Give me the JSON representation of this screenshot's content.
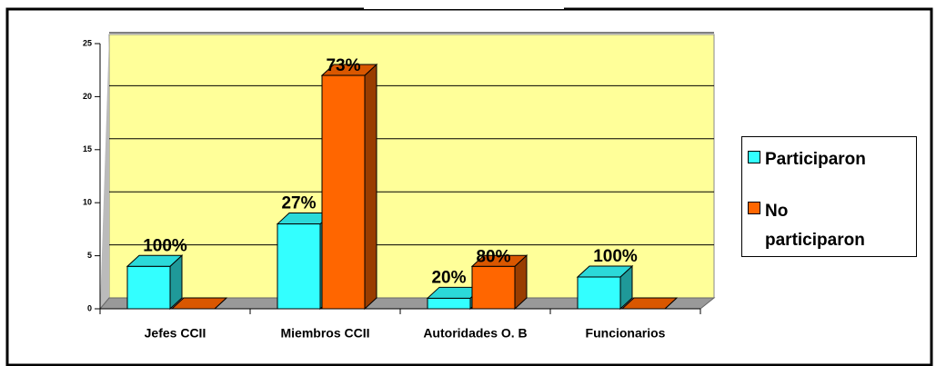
{
  "chart_data": {
    "type": "bar3d",
    "categories": [
      "Jefes CCII",
      "Miembros CCII",
      "Autoridades O. B",
      "Funcionarios"
    ],
    "series": [
      {
        "name": "Participaron",
        "color": "#33ffff",
        "values": [
          4,
          8,
          1,
          3
        ],
        "labels": [
          "100%",
          "27%",
          "20%",
          "100%"
        ]
      },
      {
        "name": "No participaron",
        "color": "#ff6600",
        "values": [
          0,
          22,
          4,
          0
        ],
        "labels": [
          null,
          "73%",
          "80%",
          null
        ]
      }
    ],
    "ylim": [
      0,
      25
    ],
    "yticks": [
      0,
      5,
      10,
      15,
      20,
      25
    ],
    "grid": true,
    "legend": "right"
  }
}
